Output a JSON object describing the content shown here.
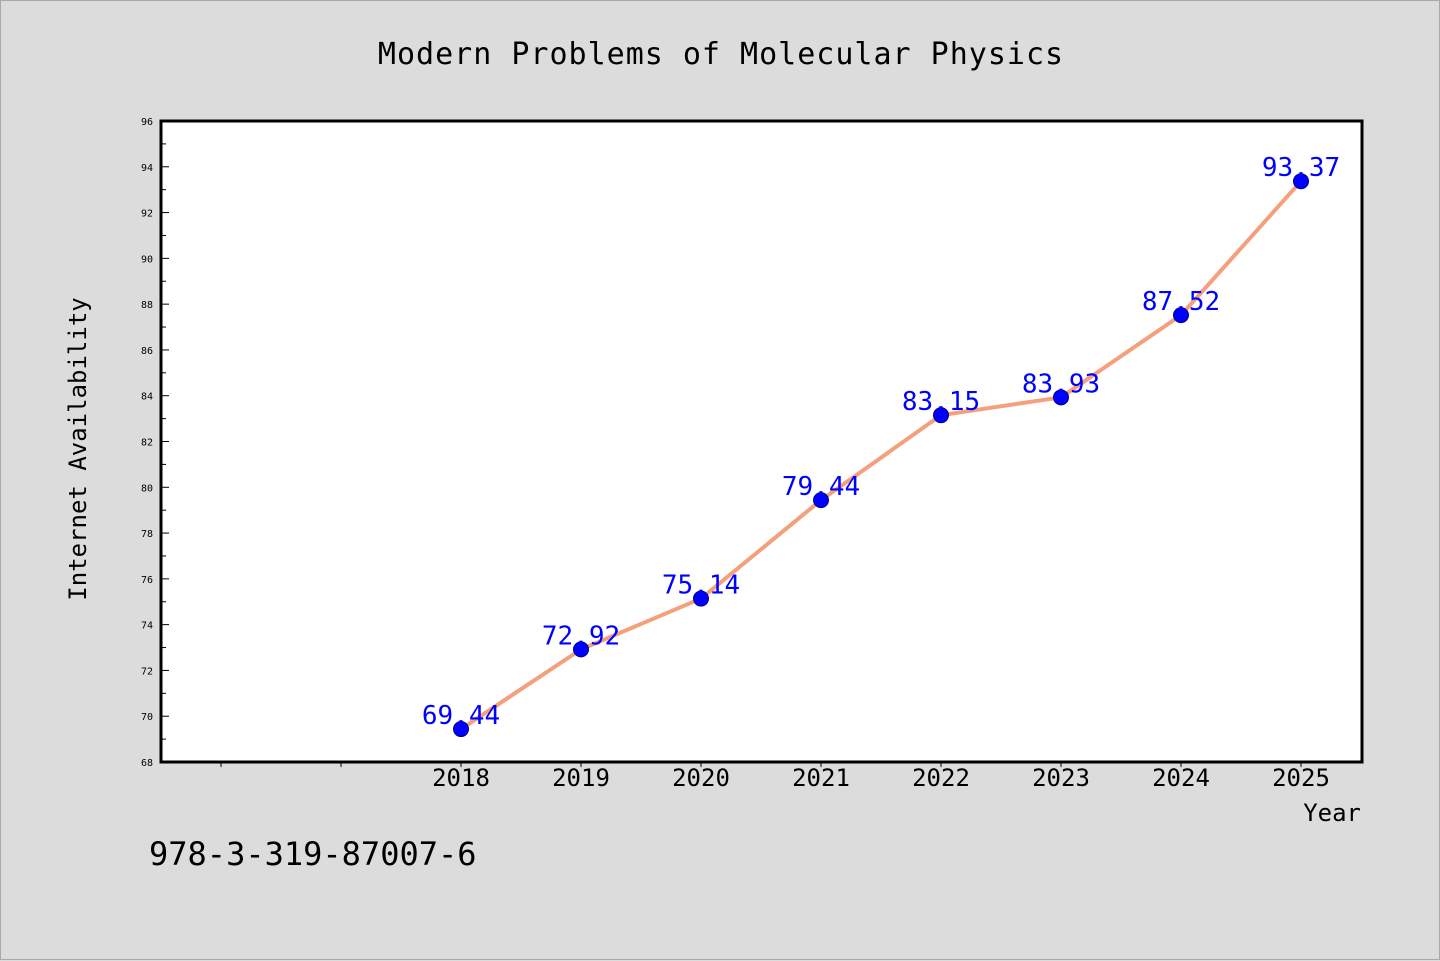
{
  "chart_data": {
    "type": "line",
    "title": "Modern Problems of Molecular Physics",
    "xlabel": "Year",
    "ylabel": "Internet Availability",
    "categories": [
      "2018",
      "2019",
      "2020",
      "2021",
      "2022",
      "2023",
      "2024",
      "2025"
    ],
    "values": [
      69.44,
      72.92,
      75.14,
      79.44,
      83.15,
      83.93,
      87.52,
      93.37
    ],
    "data_labels": [
      "69.44",
      "72.92",
      "75.14",
      "79.44",
      "83.15",
      "83.93",
      "87.52",
      "93.37"
    ],
    "ylim": [
      68,
      96
    ],
    "yticks": [
      "68",
      "70",
      "72",
      "74",
      "76",
      "78",
      "80",
      "82",
      "84",
      "86",
      "88",
      "90",
      "92",
      "94",
      "96"
    ],
    "grid": false,
    "line_color": "#f4a07c",
    "marker_color": "#0000ff",
    "label_color": "#0000ff"
  },
  "footer": "978-3-319-87007-6"
}
